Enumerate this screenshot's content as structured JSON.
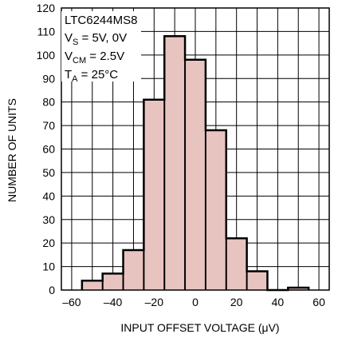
{
  "chart_data": {
    "type": "bar",
    "subtype": "histogram",
    "xlabel": "INPUT OFFSET VOLTAGE (μV)",
    "ylabel": "NUMBER OF UNITS",
    "xlim": [
      -65,
      65
    ],
    "ylim": [
      0,
      120
    ],
    "xticks": [
      "–60",
      "–40",
      "–20",
      "0",
      "20",
      "40",
      "60"
    ],
    "yticks": [
      "0",
      "10",
      "20",
      "30",
      "40",
      "50",
      "60",
      "70",
      "80",
      "90",
      "100",
      "110",
      "120"
    ],
    "grid": true,
    "bin_width": 10,
    "bins": [
      {
        "x0": -55,
        "x1": -45,
        "count": 4
      },
      {
        "x0": -45,
        "x1": -35,
        "count": 7
      },
      {
        "x0": -35,
        "x1": -25,
        "count": 17
      },
      {
        "x0": -25,
        "x1": -15,
        "count": 81
      },
      {
        "x0": -15,
        "x1": -5,
        "count": 108
      },
      {
        "x0": -5,
        "x1": 5,
        "count": 98
      },
      {
        "x0": 5,
        "x1": 15,
        "count": 68
      },
      {
        "x0": 15,
        "x1": 25,
        "count": 22
      },
      {
        "x0": 25,
        "x1": 35,
        "count": 8
      },
      {
        "x0": 35,
        "x1": 45,
        "count": 0
      },
      {
        "x0": 45,
        "x1": 55,
        "count": 1
      }
    ],
    "annotation": {
      "part": "LTC6244MS8",
      "vs": {
        "main": "V",
        "sub": "S",
        "rest": " = 5V, 0V"
      },
      "vcm": {
        "main": "V",
        "sub": "CM",
        "rest": " = 2.5V"
      },
      "ta": {
        "main": "T",
        "sub": "A",
        "rest": " = 25°C"
      }
    },
    "colors": {
      "bar_fill": "#e8c4c0",
      "bar_stroke": "#000000",
      "grid": "#000000"
    }
  }
}
